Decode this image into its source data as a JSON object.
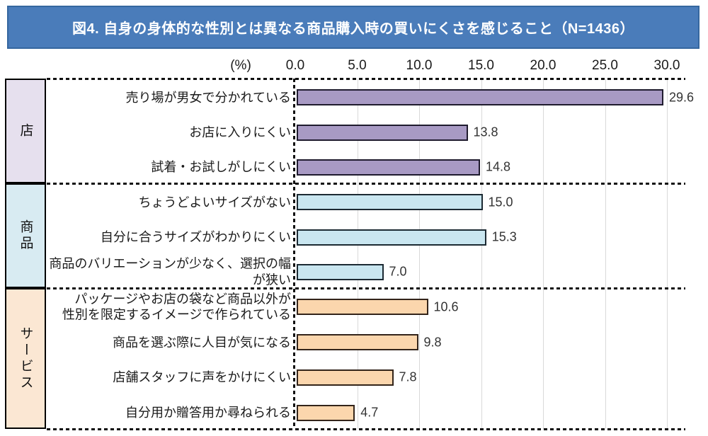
{
  "chart_data": {
    "type": "bar",
    "orientation": "horizontal",
    "title": "図4. 自身の身体的な性別とは異なる商品購入時の買いにくさを感じること（N=1436）",
    "sample_size": 1436,
    "xlabel": "(%)",
    "xlim": [
      0,
      30
    ],
    "grid": true,
    "x_ticks": {
      "labels": [
        "0.0",
        "5.0",
        "10.0",
        "15.0",
        "20.0",
        "25.0",
        "30.0"
      ],
      "values": [
        0,
        5,
        10,
        15,
        20,
        25,
        30
      ]
    },
    "groups": [
      {
        "name": "店",
        "box_color": "#e6e0ee",
        "bar_color": "#a89ac4",
        "bar_border": "#1f1b2e",
        "items": [
          {
            "label": "売り場が男女で分かれている",
            "value": 29.6
          },
          {
            "label": "お店に入りにくい",
            "value": 13.8
          },
          {
            "label": "試着・お試しがしにくい",
            "value": 14.8
          }
        ]
      },
      {
        "name": "商品",
        "box_color": "#d8ebf2",
        "bar_color": "#c9e6f0",
        "bar_border": "#1c2a33",
        "items": [
          {
            "label": "ちょうどよいサイズがない",
            "value": 15.0
          },
          {
            "label": "自分に合うサイズがわかりにくい",
            "value": 15.3
          },
          {
            "label": "商品のバリエーションが少なく、選択の幅\nが狭い",
            "value": 7.0
          }
        ]
      },
      {
        "name": "サービス",
        "box_color": "#fbe7d3",
        "bar_color": "#fbd6ad",
        "bar_border": "#33241a",
        "items": [
          {
            "label": "パッケージやお店の袋など商品以外が\n性別を限定するイメージで作られている",
            "value": 10.6
          },
          {
            "label": "商品を選ぶ際に人目が気になる",
            "value": 9.8
          },
          {
            "label": "店舗スタッフに声をかけにくい",
            "value": 7.8
          },
          {
            "label": "自分用か贈答用か尋ねられる",
            "value": 4.7
          }
        ]
      }
    ]
  },
  "colors": {
    "banner_bg": "#4a7cba",
    "banner_border": "#35679f",
    "banner_text": "#ffffff",
    "gridline": "#d9d9d9",
    "dotted_line": "#111111",
    "text": "#1a1a1a"
  }
}
